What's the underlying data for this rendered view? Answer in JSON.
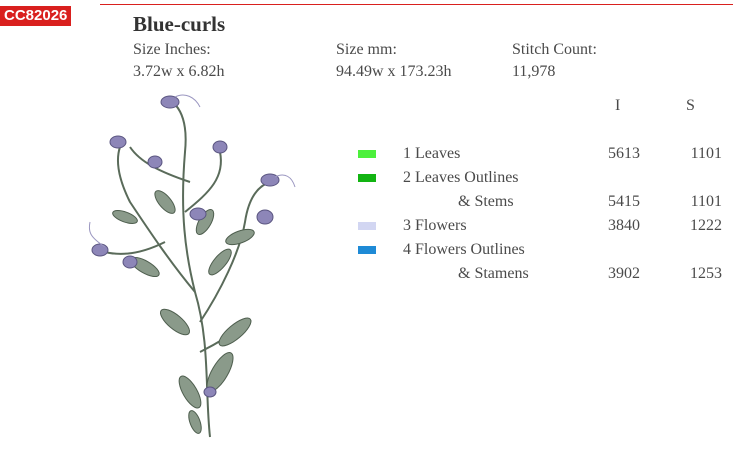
{
  "header": {
    "code": "CC82026",
    "title": "Blue-curls"
  },
  "specs": [
    {
      "label": "Size Inches:",
      "value": "3.72w x 6.82h"
    },
    {
      "label": "Size mm:",
      "value": "94.49w x 173.23h"
    },
    {
      "label": "Stitch Count:",
      "value": "11,978"
    }
  ],
  "table": {
    "columns": [
      "I",
      "S"
    ],
    "rows": [
      {
        "label": [
          "1 Leaves"
        ],
        "color": "#4cf03c",
        "I": 5613,
        "S": 1101
      },
      {
        "label": [
          "2 Leaves Outlines",
          "& Stems"
        ],
        "color": "#12b412",
        "I": 5415,
        "S": 1101
      },
      {
        "label": [
          "3 Flowers"
        ],
        "color": "#d2d6f2",
        "I": 3840,
        "S": 1222
      },
      {
        "label": [
          "4 Flowers Outlines",
          "& Stamens"
        ],
        "color": "#1e8ad6",
        "I": 3902,
        "S": 1253
      }
    ]
  }
}
